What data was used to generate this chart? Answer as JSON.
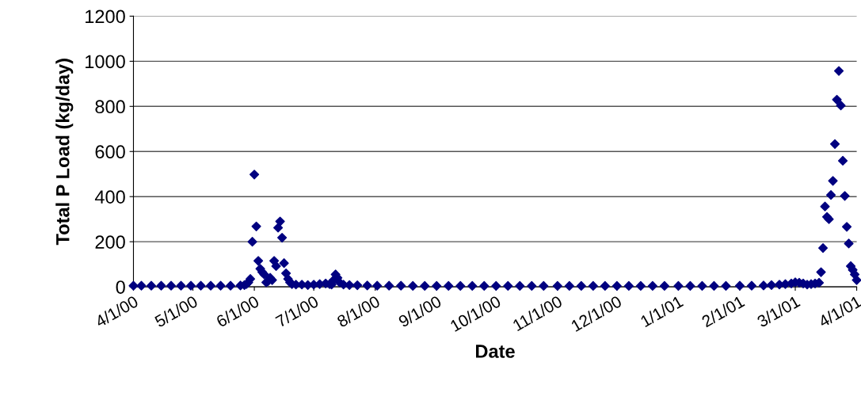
{
  "chart_data": {
    "type": "scatter",
    "xlabel": "Date",
    "ylabel": "Total P Load (kg/day)",
    "x": [
      "2000-04-01",
      "2000-04-05",
      "2000-04-10",
      "2000-04-15",
      "2000-04-20",
      "2000-04-25",
      "2000-04-30",
      "2000-05-05",
      "2000-05-10",
      "2000-05-15",
      "2000-05-20",
      "2000-05-25",
      "2000-05-27",
      "2000-05-28",
      "2000-05-29",
      "2000-05-30",
      "2000-05-31",
      "2000-06-01",
      "2000-06-02",
      "2000-06-03",
      "2000-06-04",
      "2000-06-05",
      "2000-06-06",
      "2000-06-07",
      "2000-06-08",
      "2000-06-09",
      "2000-06-10",
      "2000-06-11",
      "2000-06-12",
      "2000-06-13",
      "2000-06-14",
      "2000-06-15",
      "2000-06-16",
      "2000-06-17",
      "2000-06-18",
      "2000-06-19",
      "2000-06-20",
      "2000-06-22",
      "2000-06-25",
      "2000-06-28",
      "2000-07-01",
      "2000-07-04",
      "2000-07-07",
      "2000-07-09",
      "2000-07-10",
      "2000-07-11",
      "2000-07-12",
      "2000-07-13",
      "2000-07-14",
      "2000-07-16",
      "2000-07-19",
      "2000-07-23",
      "2000-07-28",
      "2000-08-02",
      "2000-08-08",
      "2000-08-14",
      "2000-08-20",
      "2000-08-26",
      "2000-09-01",
      "2000-09-07",
      "2000-09-13",
      "2000-09-19",
      "2000-09-25",
      "2000-10-01",
      "2000-10-07",
      "2000-10-13",
      "2000-10-19",
      "2000-10-25",
      "2000-11-01",
      "2000-11-07",
      "2000-11-13",
      "2000-11-19",
      "2000-11-25",
      "2000-12-01",
      "2000-12-07",
      "2000-12-13",
      "2000-12-19",
      "2000-12-25",
      "2001-01-01",
      "2001-01-07",
      "2001-01-13",
      "2001-01-19",
      "2001-01-25",
      "2001-02-01",
      "2001-02-07",
      "2001-02-13",
      "2001-02-17",
      "2001-02-21",
      "2001-02-24",
      "2001-02-27",
      "2001-03-01",
      "2001-03-03",
      "2001-03-05",
      "2001-03-07",
      "2001-03-09",
      "2001-03-11",
      "2001-03-13",
      "2001-03-14",
      "2001-03-15",
      "2001-03-16",
      "2001-03-17",
      "2001-03-18",
      "2001-03-19",
      "2001-03-20",
      "2001-03-21",
      "2001-03-22",
      "2001-03-23",
      "2001-03-24",
      "2001-03-25",
      "2001-03-26",
      "2001-03-27",
      "2001-03-28",
      "2001-03-29",
      "2001-03-30",
      "2001-03-31",
      "2001-04-01"
    ],
    "values": [
      5,
      5,
      5,
      5,
      5,
      5,
      5,
      5,
      5,
      5,
      5,
      6,
      8,
      12,
      20,
      35,
      200,
      498,
      268,
      115,
      80,
      65,
      55,
      20,
      25,
      40,
      30,
      115,
      92,
      262,
      290,
      218,
      105,
      60,
      35,
      20,
      12,
      10,
      10,
      8,
      10,
      12,
      15,
      12,
      10,
      30,
      55,
      40,
      20,
      10,
      8,
      7,
      6,
      5,
      5,
      5,
      4,
      4,
      4,
      4,
      4,
      4,
      4,
      4,
      4,
      4,
      4,
      4,
      4,
      4,
      4,
      4,
      4,
      4,
      4,
      4,
      4,
      4,
      4,
      4,
      4,
      4,
      4,
      5,
      5,
      6,
      8,
      10,
      12,
      15,
      20,
      18,
      15,
      10,
      12,
      15,
      18,
      65,
      172,
      356,
      310,
      300,
      407,
      470,
      633,
      830,
      957,
      804,
      559,
      403,
      266,
      192,
      92,
      75,
      55,
      30
    ],
    "color": "#000080",
    "marker": "diamond",
    "xlim": [
      "2000-04-01",
      "2001-04-01"
    ],
    "xticks": [
      {
        "value": "2000-04-01",
        "label": "4/1/00"
      },
      {
        "value": "2000-05-01",
        "label": "5/1/00"
      },
      {
        "value": "2000-06-01",
        "label": "6/1/00"
      },
      {
        "value": "2000-07-01",
        "label": "7/1/00"
      },
      {
        "value": "2000-08-01",
        "label": "8/1/00"
      },
      {
        "value": "2000-09-01",
        "label": "9/1/00"
      },
      {
        "value": "2000-10-01",
        "label": "10/1/00"
      },
      {
        "value": "2000-11-01",
        "label": "11/1/00"
      },
      {
        "value": "2000-12-01",
        "label": "12/1/00"
      },
      {
        "value": "2001-01-01",
        "label": "1/1/01"
      },
      {
        "value": "2001-02-01",
        "label": "2/1/01"
      },
      {
        "value": "2001-03-01",
        "label": "3/1/01"
      },
      {
        "value": "2001-04-01",
        "label": "4/1/01"
      }
    ],
    "ylim": [
      0,
      1200
    ],
    "yticks": [
      0,
      200,
      400,
      600,
      800,
      1000,
      1200
    ],
    "grid": "y"
  }
}
